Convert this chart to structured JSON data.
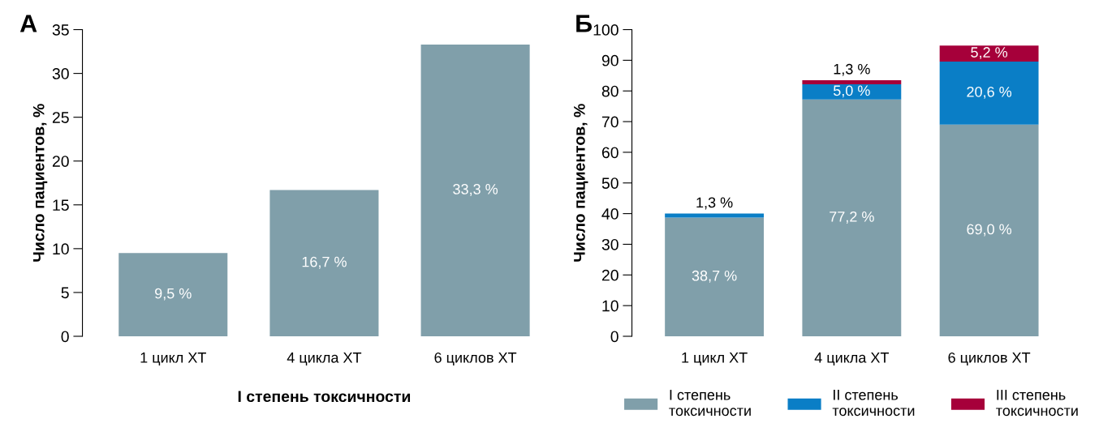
{
  "chart_data": [
    {
      "type": "bar",
      "title": "А",
      "xlabel": "I степень токсичности",
      "ylabel": "Число пациентов, %",
      "categories": [
        "1 цикл ХТ",
        "4 цикла ХТ",
        "6 циклов ХТ"
      ],
      "values": [
        9.5,
        16.7,
        33.3
      ],
      "color": "#809faa",
      "value_labels": [
        "9,5 %",
        "16,7 %",
        "33,3 %"
      ],
      "ylim": [
        0,
        35
      ],
      "yticks": [
        0,
        5,
        10,
        15,
        20,
        25,
        30,
        35
      ],
      "grid": false,
      "legend": false
    },
    {
      "type": "bar",
      "title": "Б",
      "ylabel": "Число пациентов, %",
      "stacked": true,
      "categories": [
        "1 цикл ХТ",
        "4 цикла ХТ",
        "6 циклов ХТ"
      ],
      "series": [
        {
          "name": "I степень\nтоксичности",
          "color": "#809faa",
          "values": [
            38.7,
            77.2,
            69.0
          ],
          "value_labels": [
            "38,7 %",
            "77,2 %",
            "69,0 %"
          ]
        },
        {
          "name": "II степень\nтоксичности",
          "color": "#0a7ec6",
          "values": [
            1.3,
            5.0,
            20.6
          ],
          "value_labels": [
            "1,3 %",
            "5,0 %",
            "20,6 %"
          ]
        },
        {
          "name": "III степень\nтоксичности",
          "color": "#a6003a",
          "values": [
            null,
            1.3,
            5.2
          ],
          "value_labels": [
            null,
            "1,3 %",
            "5,2 %"
          ]
        }
      ],
      "ylim": [
        0,
        100
      ],
      "yticks": [
        0,
        10,
        20,
        30,
        40,
        50,
        60,
        70,
        80,
        90,
        100
      ],
      "grid": false,
      "legend": "bottom"
    }
  ]
}
